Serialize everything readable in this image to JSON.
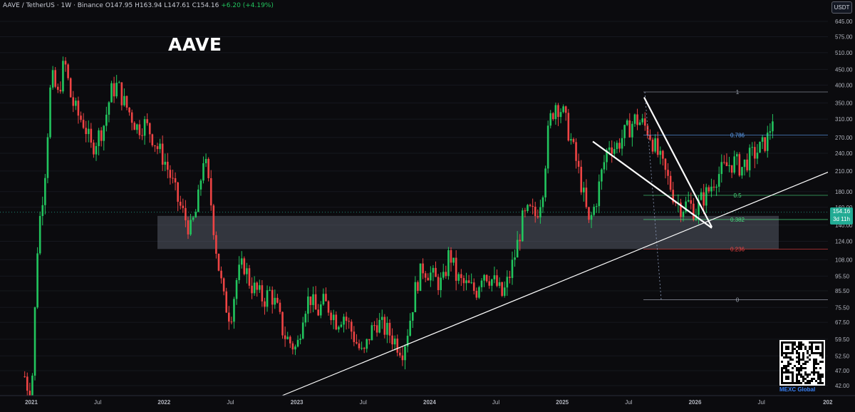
{
  "header": {
    "symbol": "AAVE / TetherUS",
    "interval": "1W",
    "exchange": "Binance",
    "ohlc": "O147.95 H163.94 L147.61 C154.16",
    "change": "+6.20 (+4.19%)"
  },
  "title": "AAVE",
  "currency": "USDT",
  "current_price": {
    "value": "154.16",
    "countdown": "3d 11h"
  },
  "watermark": "MEXC Global",
  "colors": {
    "up": "#22c55e",
    "down": "#ef4444",
    "background": "#0b0b0e",
    "zone": "#6b7280",
    "line": "#ffffff"
  },
  "chart_data": {
    "type": "candlestick",
    "x_ticks": [
      "2021",
      "Jul",
      "2022",
      "Jul",
      "2023",
      "Jul",
      "2024",
      "Jul",
      "2025",
      "Jul",
      "2026",
      "Jul",
      "202"
    ],
    "y_ticks": [
      645.0,
      575.0,
      510.0,
      450.0,
      400.0,
      350.0,
      310.0,
      270.0,
      240.0,
      210.0,
      180.0,
      160.0,
      140.0,
      124.0,
      108.0,
      95.5,
      85.5,
      75.5,
      67.5,
      59.5,
      52.5,
      47.0,
      42.0
    ],
    "y_scale": "log",
    "fib_levels": [
      {
        "label": "1",
        "price": 380
      },
      {
        "label": "0.786",
        "price": 275
      },
      {
        "label": "0.5",
        "price": 175
      },
      {
        "label": "0.382",
        "price": 146
      },
      {
        "label": "0.236",
        "price": 117
      },
      {
        "label": "0",
        "price": 80
      }
    ],
    "zone": {
      "low": 117,
      "high": 150
    },
    "price_path": [
      [
        2020.95,
        45
      ],
      [
        2021.0,
        38
      ],
      [
        2021.05,
        130
      ],
      [
        2021.1,
        200
      ],
      [
        2021.15,
        430
      ],
      [
        2021.2,
        370
      ],
      [
        2021.25,
        480
      ],
      [
        2021.3,
        360
      ],
      [
        2021.35,
        320
      ],
      [
        2021.4,
        300
      ],
      [
        2021.45,
        250
      ],
      [
        2021.5,
        270
      ],
      [
        2021.55,
        300
      ],
      [
        2021.6,
        380
      ],
      [
        2021.65,
        400
      ],
      [
        2021.7,
        350
      ],
      [
        2021.75,
        320
      ],
      [
        2021.8,
        290
      ],
      [
        2021.85,
        300
      ],
      [
        2021.9,
        280
      ],
      [
        2021.95,
        250
      ],
      [
        2022.0,
        230
      ],
      [
        2022.05,
        200
      ],
      [
        2022.1,
        170
      ],
      [
        2022.15,
        150
      ],
      [
        2022.2,
        135
      ],
      [
        2022.25,
        160
      ],
      [
        2022.3,
        240
      ],
      [
        2022.35,
        170
      ],
      [
        2022.4,
        110
      ],
      [
        2022.45,
        80
      ],
      [
        2022.5,
        70
      ],
      [
        2022.55,
        95
      ],
      [
        2022.6,
        105
      ],
      [
        2022.65,
        90
      ],
      [
        2022.7,
        85
      ],
      [
        2022.75,
        80
      ],
      [
        2022.8,
        85
      ],
      [
        2022.85,
        75
      ],
      [
        2022.9,
        62
      ],
      [
        2022.95,
        58
      ],
      [
        2023.0,
        55
      ],
      [
        2023.05,
        75
      ],
      [
        2023.1,
        82
      ],
      [
        2023.15,
        72
      ],
      [
        2023.2,
        78
      ],
      [
        2023.25,
        75
      ],
      [
        2023.3,
        68
      ],
      [
        2023.35,
        72
      ],
      [
        2023.4,
        65
      ],
      [
        2023.45,
        58
      ],
      [
        2023.5,
        52
      ],
      [
        2023.55,
        62
      ],
      [
        2023.6,
        68
      ],
      [
        2023.65,
        65
      ],
      [
        2023.7,
        62
      ],
      [
        2023.75,
        58
      ],
      [
        2023.8,
        55
      ],
      [
        2023.85,
        68
      ],
      [
        2023.9,
        90
      ],
      [
        2023.95,
        102
      ],
      [
        2024.0,
        98
      ],
      [
        2024.05,
        92
      ],
      [
        2024.1,
        90
      ],
      [
        2024.15,
        115
      ],
      [
        2024.2,
        95
      ],
      [
        2024.25,
        90
      ],
      [
        2024.3,
        88
      ],
      [
        2024.35,
        85
      ],
      [
        2024.4,
        100
      ],
      [
        2024.45,
        95
      ],
      [
        2024.5,
        90
      ],
      [
        2024.55,
        82
      ],
      [
        2024.6,
        95
      ],
      [
        2024.65,
        115
      ],
      [
        2024.7,
        145
      ],
      [
        2024.75,
        155
      ],
      [
        2024.8,
        150
      ],
      [
        2024.85,
        180
      ],
      [
        2024.9,
        300
      ],
      [
        2024.95,
        350
      ],
      [
        2025.0,
        330
      ],
      [
        2025.05,
        280
      ],
      [
        2025.1,
        230
      ],
      [
        2025.15,
        185
      ],
      [
        2025.2,
        140
      ],
      [
        2025.25,
        165
      ],
      [
        2025.3,
        210
      ],
      [
        2025.35,
        260
      ],
      [
        2025.4,
        250
      ],
      [
        2025.45,
        270
      ],
      [
        2025.5,
        290
      ],
      [
        2025.55,
        310
      ],
      [
        2025.6,
        300
      ],
      [
        2025.65,
        285
      ],
      [
        2025.7,
        250
      ],
      [
        2025.75,
        220
      ],
      [
        2025.8,
        195
      ],
      [
        2025.85,
        170
      ],
      [
        2025.9,
        160
      ],
      [
        2025.95,
        165
      ],
      [
        2026.0,
        155
      ],
      [
        2026.05,
        170
      ],
      [
        2026.1,
        180
      ],
      [
        2026.15,
        200
      ],
      [
        2026.2,
        210
      ],
      [
        2026.25,
        220
      ],
      [
        2026.3,
        225
      ],
      [
        2026.35,
        215
      ],
      [
        2026.4,
        230
      ],
      [
        2026.45,
        240
      ],
      [
        2026.5,
        250
      ],
      [
        2026.55,
        270
      ],
      [
        2026.6,
        340
      ]
    ]
  }
}
